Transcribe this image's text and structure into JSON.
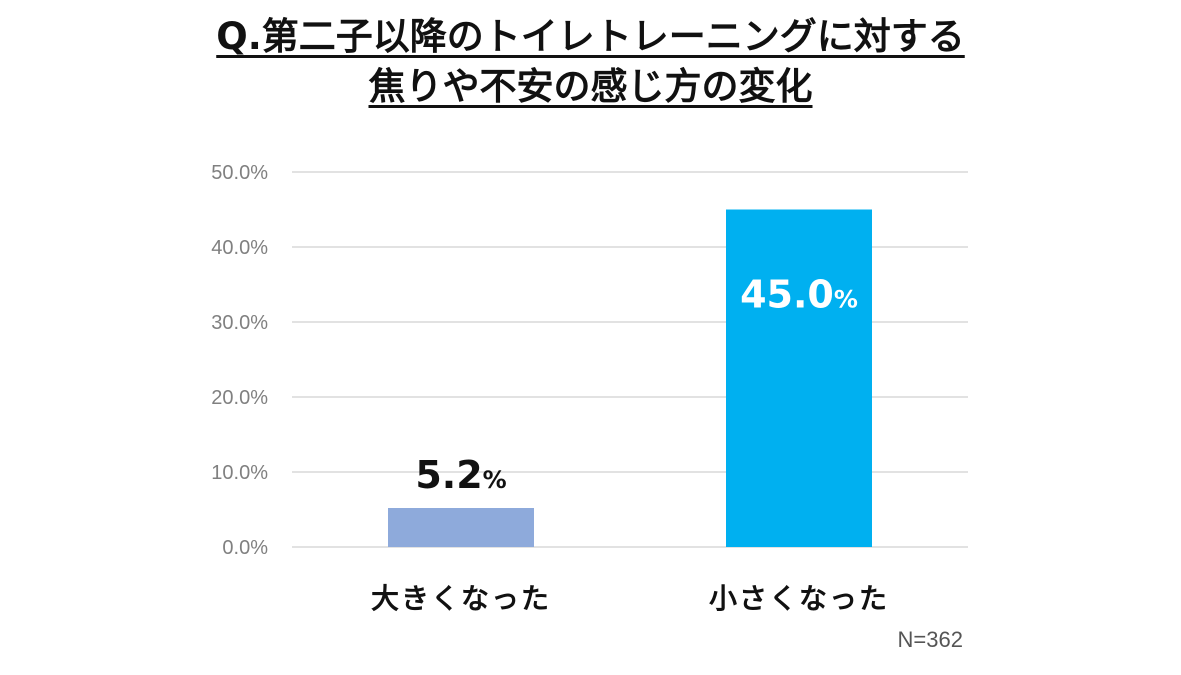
{
  "title_lines": [
    "Q.第二子以降のトイレトレーニングに対する",
    "焦りや不安の感じ方の変化"
  ],
  "note": "N=362",
  "chart_data": {
    "type": "bar",
    "title": "Q.第二子以降のトイレトレーニングに対する焦りや不安の感じ方の変化",
    "categories": [
      "大きくなった",
      "小さくなった"
    ],
    "values": [
      5.2,
      45.0
    ],
    "data_labels": [
      {
        "number": "5.2",
        "unit": "%"
      },
      {
        "number": "45.0",
        "unit": "%"
      }
    ],
    "value_unit": "%",
    "ylim": [
      0,
      50
    ],
    "yticks": [
      0,
      10,
      20,
      30,
      40,
      50
    ],
    "ytick_labels": [
      "0.0%",
      "10.0%",
      "20.0%",
      "30.0%",
      "40.0%",
      "50.0%"
    ],
    "grid": true,
    "legend": "none",
    "colors": [
      "#8eaadb",
      "#00b0f0"
    ],
    "label_colors": [
      "#111111",
      "#ffffff"
    ]
  }
}
